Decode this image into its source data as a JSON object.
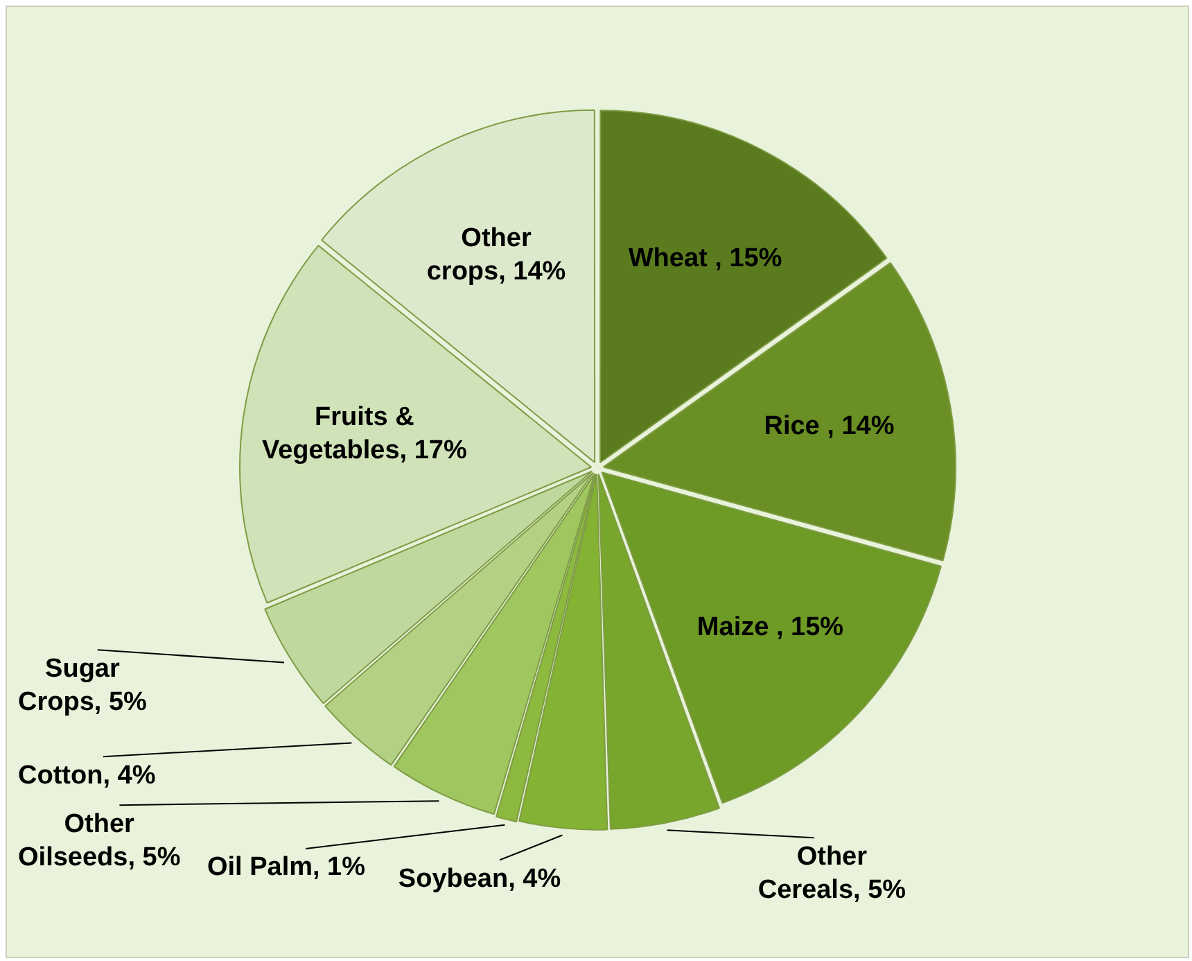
{
  "chart_data": {
    "type": "pie",
    "categories": [
      "Wheat ",
      "Rice ",
      "Maize ",
      "Other Cereals",
      "Soybean",
      "Oil Palm",
      "Other Oilseeds",
      "Cotton",
      "Sugar Crops",
      "Fruits & Vegetables",
      "Other crops"
    ],
    "values": [
      15,
      14,
      15,
      5,
      4,
      1,
      5,
      4,
      5,
      17,
      14
    ],
    "value_labels": [
      "15%",
      "14%",
      "15%",
      "5%",
      "4%",
      "1%",
      "5%",
      "4%",
      "5%",
      "17%",
      "14%"
    ],
    "colors": [
      "#5b7b1f",
      "#6a8f24",
      "#6e9a26",
      "#78a52c",
      "#84b233",
      "#8cb93e",
      "#9fc65f",
      "#b2d184",
      "#bfd89d",
      "#d0e2b8",
      "#dde9cd"
    ],
    "legend": false
  }
}
